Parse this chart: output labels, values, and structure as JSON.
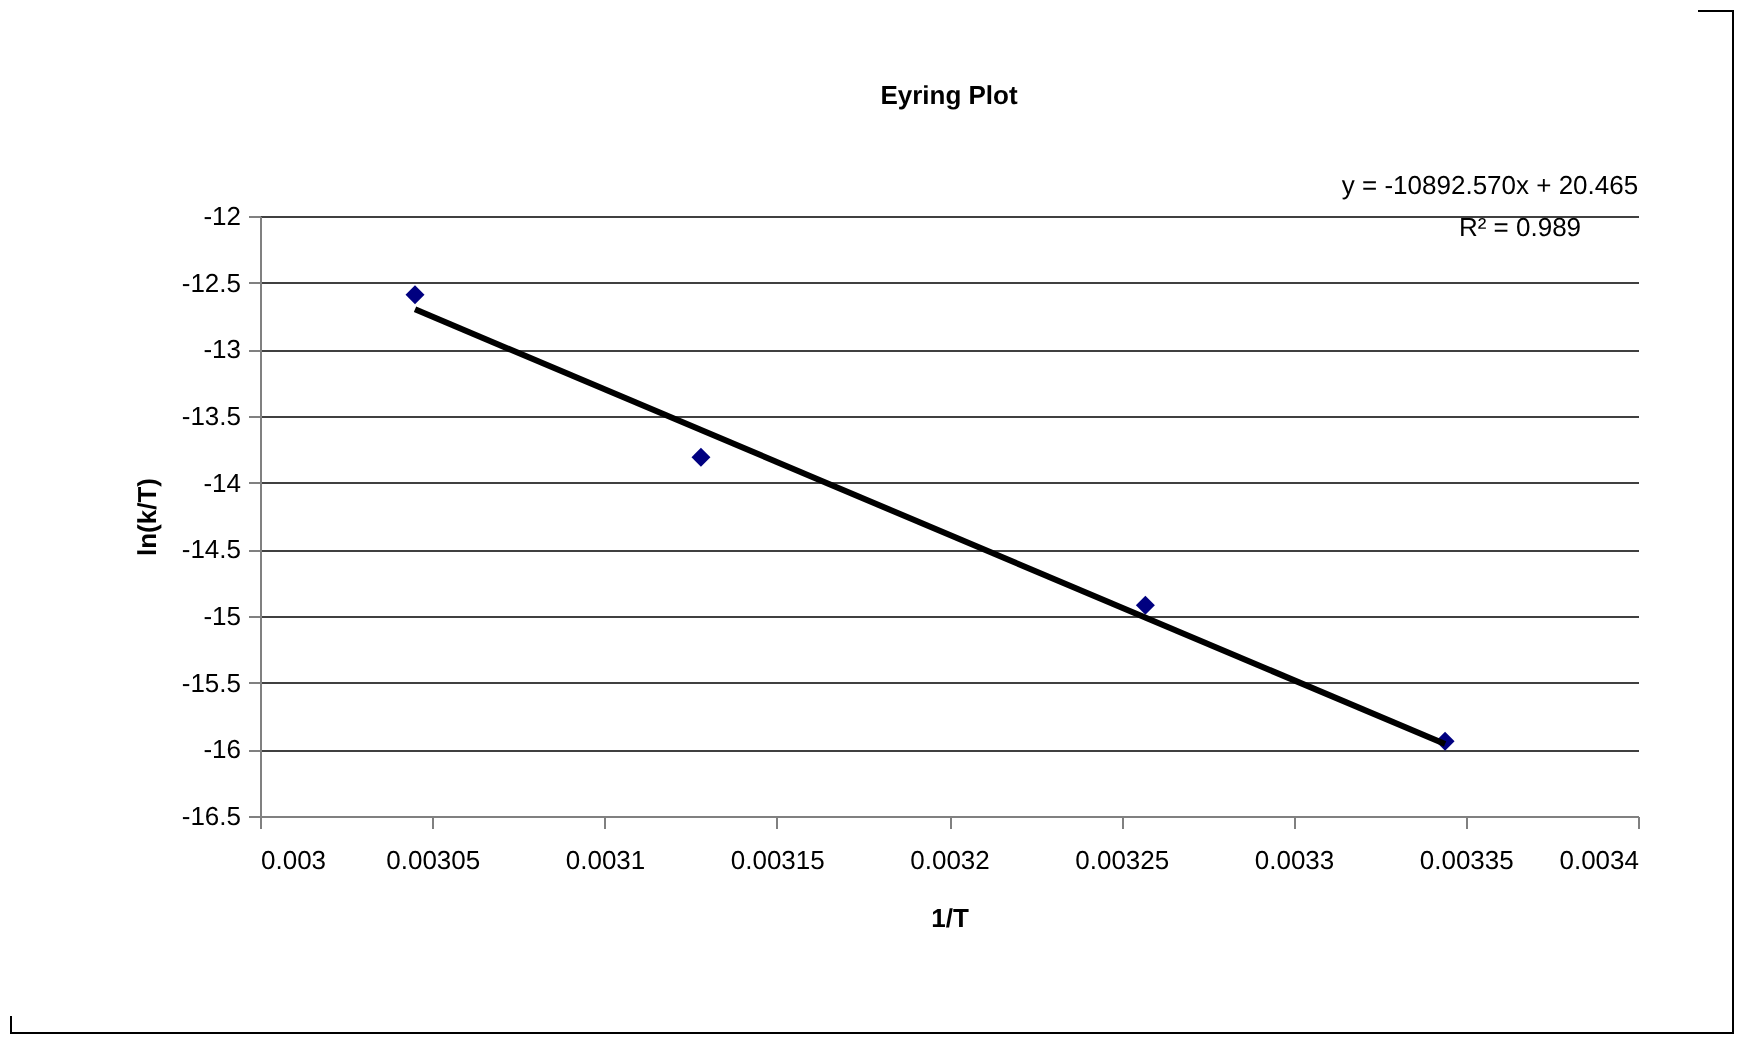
{
  "chart_data": {
    "type": "scatter",
    "title": "Eyring Plot",
    "xlabel": "1/T",
    "ylabel": "ln(k/T)",
    "x": [
      0.003045,
      0.003128,
      0.003257,
      0.003344
    ],
    "series": [
      {
        "color": "#000080",
        "marker": "diamond",
        "values": [
          -12.59,
          -13.81,
          -14.92,
          -15.94
        ]
      },
      {
        "type": "line",
        "color": "#000000",
        "marker": "none",
        "line_style": "solid",
        "x": [
          0.003045,
          0.003344
        ],
        "values": [
          -12.7,
          -15.96
        ]
      }
    ],
    "xlim": [
      0.003,
      0.0034
    ],
    "xticks": [
      0.003,
      0.00305,
      0.0031,
      0.00315,
      0.0032,
      0.00325,
      0.0033,
      0.00335,
      0.0034
    ],
    "ylim": [
      -16.5,
      -12
    ],
    "yticks": [
      -16.5,
      -16,
      -15.5,
      -15,
      -14.5,
      -14,
      -13.5,
      -13,
      -12.5,
      -12
    ],
    "grid": "y",
    "annotations": [
      "y = -10892.570x + 20.465",
      "R² = 0.989"
    ]
  }
}
